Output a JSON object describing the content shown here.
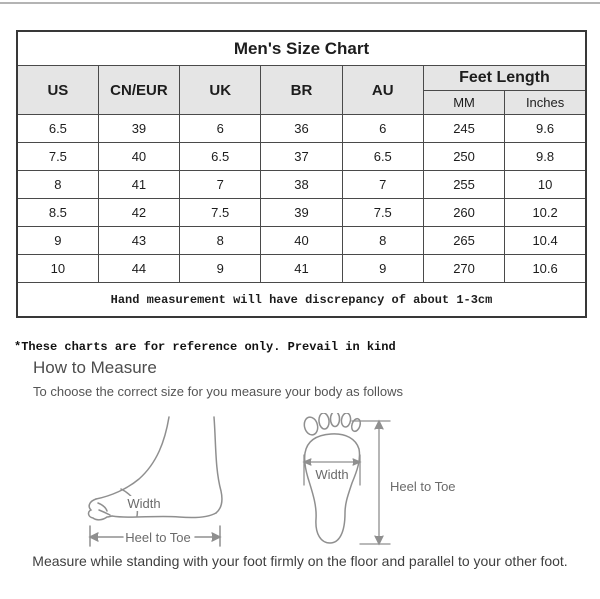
{
  "size_chart": {
    "title": "Men's Size Chart",
    "columns": [
      "US",
      "CN/EUR",
      "UK",
      "BR",
      "AU"
    ],
    "feet_length_header": "Feet Length",
    "feet_length_subcolumns": [
      "MM",
      "Inches"
    ],
    "rows": [
      [
        "6.5",
        "39",
        "6",
        "36",
        "6",
        "245",
        "9.6"
      ],
      [
        "7.5",
        "40",
        "6.5",
        "37",
        "6.5",
        "250",
        "9.8"
      ],
      [
        "8",
        "41",
        "7",
        "38",
        "7",
        "255",
        "10"
      ],
      [
        "8.5",
        "42",
        "7.5",
        "39",
        "7.5",
        "260",
        "10.2"
      ],
      [
        "9",
        "43",
        "8",
        "40",
        "8",
        "265",
        "10.4"
      ],
      [
        "10",
        "44",
        "9",
        "41",
        "9",
        "270",
        "10.6"
      ]
    ],
    "footnote": "Hand measurement will have discrepancy of about 1-3cm"
  },
  "notes": {
    "reference": "*These charts are for reference only. Prevail in kind",
    "bottom": "Measure while standing with your foot firmly on the floor and parallel to your other foot."
  },
  "how_to_measure": {
    "heading": "How to Measure",
    "subheading": "To choose the correct size for you measure your body as follows",
    "side_foot": {
      "width_label": "Width",
      "heel_to_toe_label": "Heel to Toe"
    },
    "footprint": {
      "width_label": "Width",
      "heel_to_toe_label": "Heel to Toe"
    }
  },
  "colors": {
    "header_background": "#e5e5e5",
    "table_border": "#4a4a4a",
    "diagram_stroke": "#8f8f8f",
    "muted_text": "#4d4d4d"
  }
}
